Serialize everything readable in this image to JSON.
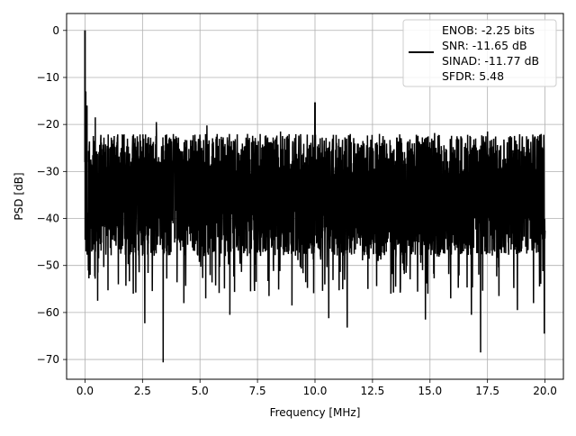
{
  "chart_data": {
    "type": "line",
    "xlabel": "Frequency [MHz]",
    "ylabel": "PSD [dB]",
    "xlim": [
      -0.8,
      20.8
    ],
    "ylim": [
      -74.2,
      3.6
    ],
    "x_ticks": [
      0.0,
      2.5,
      5.0,
      7.5,
      10.0,
      12.5,
      15.0,
      17.5,
      20.0
    ],
    "x_tick_labels": [
      "0.0",
      "2.5",
      "5.0",
      "7.5",
      "10.0",
      "12.5",
      "15.0",
      "17.5",
      "20.0"
    ],
    "y_ticks": [
      0,
      -10,
      -20,
      -30,
      -40,
      -50,
      -60,
      -70
    ],
    "y_tick_labels": [
      "0",
      "−10",
      "−20",
      "−30",
      "−40",
      "−50",
      "−60",
      "−70"
    ],
    "grid": true,
    "legend_position": "upper-right",
    "legend": {
      "line_color": "#000000",
      "entries": [
        "ENOB: -2.25 bits",
        "SNR: -11.65 dB",
        "SINAD: -11.77 dB",
        "SFDR: 5.48"
      ]
    },
    "series": [
      {
        "color": "#000000",
        "x_range": [
          0,
          20
        ],
        "noise_floor_band_db": [
          -44,
          -22
        ],
        "noise_center_db": -34,
        "peaks": [
          {
            "x": 0.0,
            "y": 0
          },
          {
            "x": 0.03,
            "y": -13
          },
          {
            "x": 0.08,
            "y": -16
          },
          {
            "x": 10.0,
            "y": -15.3
          }
        ],
        "deep_dips": [
          {
            "x": 0.04,
            "y": -47
          },
          {
            "x": 0.22,
            "y": -52
          },
          {
            "x": 0.55,
            "y": -57.5
          },
          {
            "x": 1.45,
            "y": -54
          },
          {
            "x": 2.1,
            "y": -56
          },
          {
            "x": 2.6,
            "y": -62.3
          },
          {
            "x": 3.4,
            "y": -70.6
          },
          {
            "x": 4.3,
            "y": -58
          },
          {
            "x": 5.25,
            "y": -57
          },
          {
            "x": 6.3,
            "y": -60.5
          },
          {
            "x": 7.2,
            "y": -55.5
          },
          {
            "x": 8.0,
            "y": -56.5
          },
          {
            "x": 9.0,
            "y": -58.5
          },
          {
            "x": 10.0,
            "y": -62.5
          },
          {
            "x": 10.6,
            "y": -61.2
          },
          {
            "x": 11.4,
            "y": -63.2
          },
          {
            "x": 12.3,
            "y": -55
          },
          {
            "x": 13.3,
            "y": -56
          },
          {
            "x": 14.8,
            "y": -61.5
          },
          {
            "x": 15.9,
            "y": -57
          },
          {
            "x": 16.8,
            "y": -60.5
          },
          {
            "x": 17.2,
            "y": -68.5
          },
          {
            "x": 18.0,
            "y": -56.5
          },
          {
            "x": 18.8,
            "y": -59.5
          },
          {
            "x": 19.5,
            "y": -58
          },
          {
            "x": 19.97,
            "y": -64.5
          }
        ],
        "high_spikes": [
          {
            "x": 0.45,
            "y": -18.5
          },
          {
            "x": 3.1,
            "y": -19.5
          },
          {
            "x": 5.3,
            "y": -20.2
          },
          {
            "x": 8.5,
            "y": -21.5
          },
          {
            "x": 12.8,
            "y": -22
          },
          {
            "x": 15.2,
            "y": -21.8
          },
          {
            "x": 17.5,
            "y": -21.5
          },
          {
            "x": 19.2,
            "y": -22.5
          }
        ]
      }
    ]
  }
}
